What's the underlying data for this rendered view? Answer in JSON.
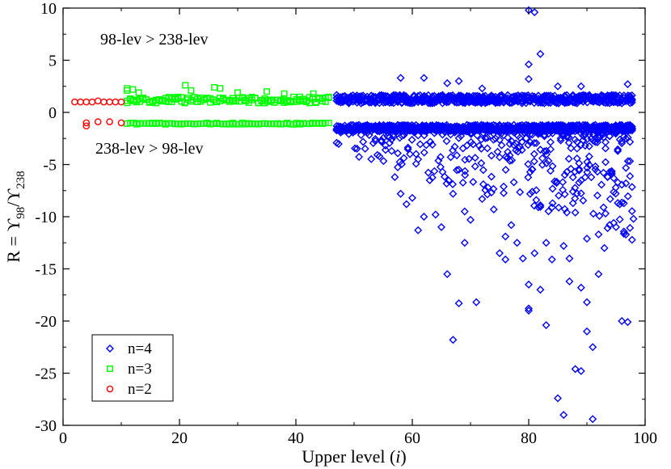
{
  "chart_data": {
    "type": "scatter",
    "title": "",
    "xlabel": "Upper level (i)",
    "xlabel_main": "Upper level (",
    "xlabel_italic": "i",
    "xlabel_close": ")",
    "ylabel_parts": [
      "R = ϒ",
      "98",
      "/ϒ",
      "238"
    ],
    "xlim": [
      0,
      100
    ],
    "ylim": [
      -30,
      10
    ],
    "xticks": [
      0,
      20,
      40,
      60,
      80,
      100
    ],
    "yticks": [
      10,
      5,
      0,
      -5,
      -10,
      -15,
      -20,
      -25,
      -30
    ],
    "grid": false,
    "legend_position": "bottom-left",
    "annotations": [
      "98-lev > 238-lev",
      "238-lev > 98-lev"
    ],
    "series": [
      {
        "name": "n=4",
        "marker": "diamond",
        "color": "#0000ff",
        "x_range": [
          47,
          98
        ],
        "band_upper": 1.15,
        "band_lower": -1.2,
        "outliers": [
          [
            80,
            9.8
          ],
          [
            81,
            9.6
          ],
          [
            80,
            4.6
          ],
          [
            82,
            5.6
          ],
          [
            80,
            3.2
          ],
          [
            58,
            3.3
          ],
          [
            62,
            3.3
          ],
          [
            72,
            2.3
          ],
          [
            85,
            2.5
          ],
          [
            89,
            2.5
          ],
          [
            97,
            2.7
          ],
          [
            66,
            2.8
          ],
          [
            68,
            3.0
          ],
          [
            57,
            -6.2
          ],
          [
            58,
            -7.8
          ],
          [
            59,
            -8.8
          ],
          [
            61,
            -11.3
          ],
          [
            62,
            -10.0
          ],
          [
            63,
            -6.5
          ],
          [
            64,
            -9.8
          ],
          [
            65,
            -11.0
          ],
          [
            66,
            -15.5
          ],
          [
            67,
            -21.8
          ],
          [
            68,
            -18.3
          ],
          [
            69,
            -12.5
          ],
          [
            70,
            -10.3
          ],
          [
            71,
            -18.2
          ],
          [
            72,
            -8.3
          ],
          [
            74,
            -9.3
          ],
          [
            75,
            -13.5
          ],
          [
            76,
            -14.1
          ],
          [
            78,
            -12.5
          ],
          [
            79,
            -14.0
          ],
          [
            80,
            -18.8
          ],
          [
            80,
            -19.0
          ],
          [
            80,
            -16.5
          ],
          [
            81,
            -13.5
          ],
          [
            82,
            -17.0
          ],
          [
            83,
            -20.4
          ],
          [
            84,
            -14.1
          ],
          [
            85,
            -27.4
          ],
          [
            86,
            -29.0
          ],
          [
            87,
            -14.0
          ],
          [
            88,
            -24.6
          ],
          [
            89,
            -24.8
          ],
          [
            90,
            -21.0
          ],
          [
            90,
            -18.2
          ],
          [
            91,
            -29.4
          ],
          [
            92,
            -15.5
          ],
          [
            93,
            -13.0
          ],
          [
            94,
            -8.3
          ],
          [
            95,
            -11.0
          ],
          [
            96,
            -20.0
          ],
          [
            97,
            -20.1
          ],
          [
            98,
            -10.2
          ],
          [
            83,
            -12.5
          ],
          [
            86,
            -12.8
          ],
          [
            88,
            -9.6
          ],
          [
            91,
            -22.5
          ],
          [
            87,
            -16.2
          ],
          [
            89,
            -16.8
          ],
          [
            77,
            -10.8
          ],
          [
            73,
            -7.2
          ],
          [
            69,
            -9.5
          ],
          [
            67,
            -7.8
          ],
          [
            90,
            -12.1
          ],
          [
            92,
            -11.7
          ],
          [
            84,
            -9.1
          ],
          [
            76,
            -11.9
          ],
          [
            60,
            -8.2
          ]
        ]
      },
      {
        "name": "n=3",
        "marker": "square",
        "color": "#00ff00",
        "x_range": [
          11,
          46
        ],
        "band_upper": 1.1,
        "band_lower": -1.0,
        "outliers": [
          [
            11,
            2.3
          ],
          [
            11,
            2.1
          ],
          [
            12,
            2.2
          ],
          [
            13,
            1.9
          ],
          [
            21,
            2.6
          ],
          [
            22,
            2.1
          ],
          [
            26,
            2.4
          ],
          [
            27,
            2.3
          ],
          [
            30,
            1.9
          ],
          [
            35,
            2.0
          ],
          [
            38,
            1.8
          ],
          [
            43,
            1.8
          ]
        ]
      },
      {
        "name": "n=2",
        "marker": "circle",
        "color": "#ff0000",
        "points": [
          [
            2,
            1.0
          ],
          [
            3,
            1.0
          ],
          [
            4,
            1.0
          ],
          [
            5,
            1.0
          ],
          [
            6,
            1.1
          ],
          [
            7,
            1.0
          ],
          [
            8,
            1.0
          ],
          [
            9,
            1.0
          ],
          [
            10,
            1.0
          ],
          [
            4,
            -1.0
          ],
          [
            4,
            -1.3
          ],
          [
            6,
            -0.9
          ],
          [
            8,
            -0.9
          ],
          [
            10,
            -1.0
          ]
        ]
      }
    ]
  }
}
